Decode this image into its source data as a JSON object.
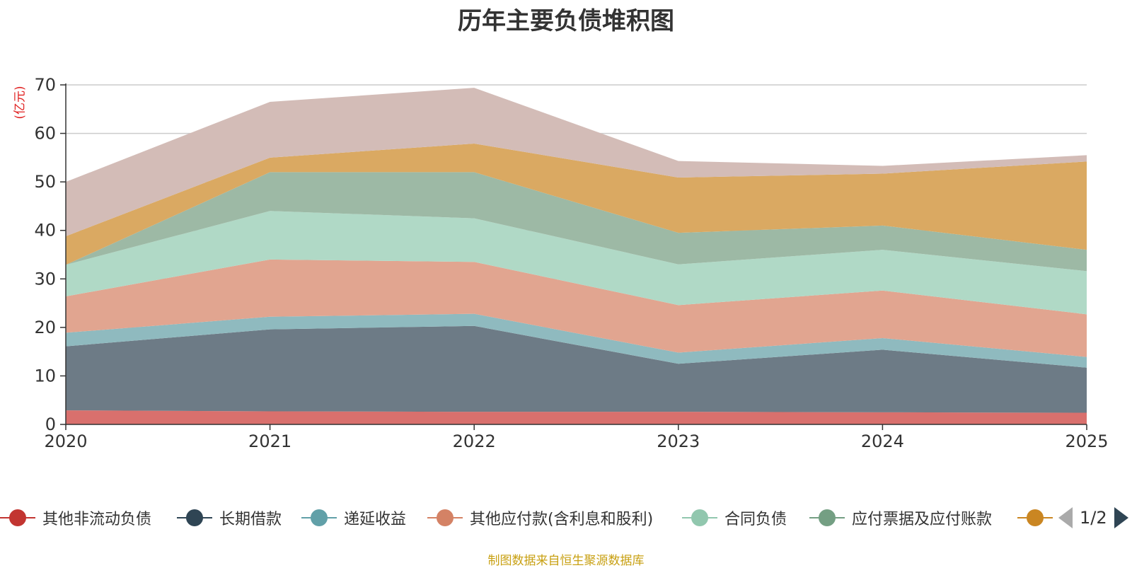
{
  "title": "历年主要负债堆积图",
  "source_note": "制图数据来自恒生聚源数据库",
  "pager": {
    "text": "1/2",
    "prev_icon": "triangle-left-icon",
    "next_icon": "triangle-right-icon"
  },
  "legend_colors": [
    "#c23531",
    "#2f4554",
    "#61a0a8",
    "#d48265",
    "#91c7ae",
    "#749f83",
    "#ca8622"
  ],
  "chart_data": {
    "type": "area",
    "stacked": true,
    "y_unit": "(亿元)",
    "categories": [
      "2020",
      "2021",
      "2022",
      "2023",
      "2024",
      "2025"
    ],
    "ylim": [
      0,
      70
    ],
    "yticks": [
      "0",
      "10",
      "20",
      "30",
      "40",
      "50",
      "60",
      "70"
    ],
    "grid": true,
    "legend_position": "bottom",
    "series": [
      {
        "name": "其他非流动负债",
        "color": "#d9706d",
        "values": [
          2.9,
          2.7,
          2.6,
          2.6,
          2.5,
          2.4
        ]
      },
      {
        "name": "长期借款",
        "color": "#6d7b86",
        "values": [
          13.2,
          16.9,
          17.7,
          9.9,
          12.9,
          9.3
        ]
      },
      {
        "name": "递延收益",
        "color": "#8fbabf",
        "values": [
          2.8,
          2.6,
          2.5,
          2.3,
          2.4,
          2.2
        ]
      },
      {
        "name": "其他应付款(含利息和股利)",
        "color": "#e1a590",
        "values": [
          7.5,
          11.8,
          10.7,
          9.8,
          9.8,
          8.8
        ]
      },
      {
        "name": "合同负债",
        "color": "#b0d9c6",
        "values": [
          6.5,
          10.0,
          9.0,
          8.4,
          8.4,
          8.9
        ]
      },
      {
        "name": "应付票据及应付账款",
        "color": "#9db9a5",
        "values": [
          0.0,
          8.0,
          9.5,
          6.5,
          5.0,
          4.4
        ]
      },
      {
        "name": "",
        "color": "#daa962",
        "values": [
          5.9,
          3.0,
          5.9,
          11.4,
          10.7,
          18.2
        ]
      },
      {
        "name": "",
        "color": "#d3bcb7",
        "values": [
          11.2,
          11.5,
          11.5,
          3.4,
          1.6,
          1.3
        ]
      }
    ]
  }
}
